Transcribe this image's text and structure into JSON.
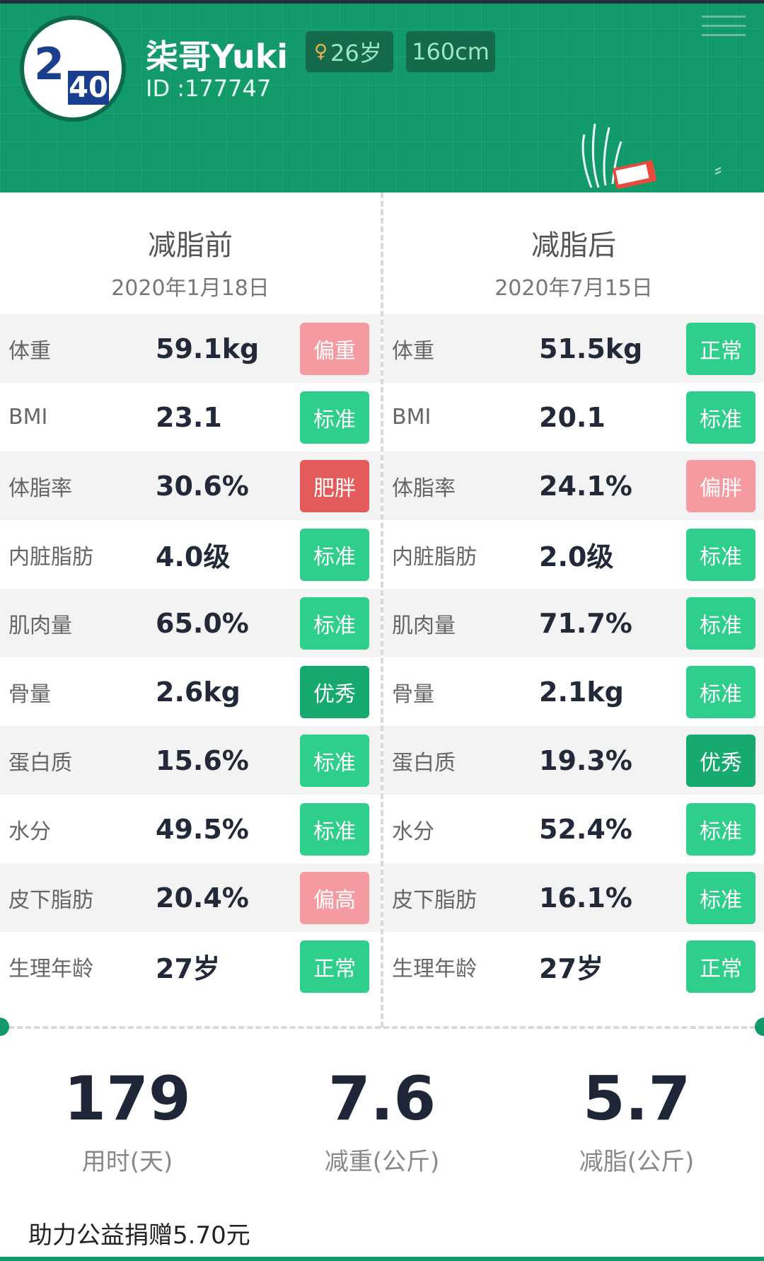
{
  "colors": {
    "header_bg": "#139a6a",
    "badge_standard": "#2ecf8a",
    "badge_excellent": "#16aa6e",
    "badge_overweight": "#f59aa0",
    "badge_obese": "#e35b5b"
  },
  "header": {
    "avatar_icon": "brand-logo-icon",
    "avatar_logo_text_a": "2",
    "avatar_logo_text_b": "40",
    "username": "柒哥Yuki",
    "id_label": "ID :177747",
    "age_icon": "female-icon",
    "age": "26岁",
    "height": "160cm"
  },
  "before": {
    "title": "减脂前",
    "date": "2020年1月18日",
    "rows": [
      {
        "label": "体重",
        "value": "59.1kg",
        "status": "偏重",
        "color": "#f59aa0"
      },
      {
        "label": "BMI",
        "value": "23.1",
        "status": "标准",
        "color": "#2ecf8a"
      },
      {
        "label": "体脂率",
        "value": "30.6%",
        "status": "肥胖",
        "color": "#e35b5b"
      },
      {
        "label": "内脏脂肪",
        "value": "4.0级",
        "status": "标准",
        "color": "#2ecf8a"
      },
      {
        "label": "肌肉量",
        "value": "65.0%",
        "status": "标准",
        "color": "#2ecf8a"
      },
      {
        "label": "骨量",
        "value": "2.6kg",
        "status": "优秀",
        "color": "#16aa6e"
      },
      {
        "label": "蛋白质",
        "value": "15.6%",
        "status": "标准",
        "color": "#2ecf8a"
      },
      {
        "label": "水分",
        "value": "49.5%",
        "status": "标准",
        "color": "#2ecf8a"
      },
      {
        "label": "皮下脂肪",
        "value": "20.4%",
        "status": "偏高",
        "color": "#f59aa0"
      },
      {
        "label": "生理年龄",
        "value": "27岁",
        "status": "正常",
        "color": "#2ecf8a"
      }
    ]
  },
  "after": {
    "title": "减脂后",
    "date": "2020年7月15日",
    "rows": [
      {
        "label": "体重",
        "value": "51.5kg",
        "status": "正常",
        "color": "#2ecf8a"
      },
      {
        "label": "BMI",
        "value": "20.1",
        "status": "标准",
        "color": "#2ecf8a"
      },
      {
        "label": "体脂率",
        "value": "24.1%",
        "status": "偏胖",
        "color": "#f59aa0"
      },
      {
        "label": "内脏脂肪",
        "value": "2.0级",
        "status": "标准",
        "color": "#2ecf8a"
      },
      {
        "label": "肌肉量",
        "value": "71.7%",
        "status": "标准",
        "color": "#2ecf8a"
      },
      {
        "label": "骨量",
        "value": "2.1kg",
        "status": "标准",
        "color": "#2ecf8a"
      },
      {
        "label": "蛋白质",
        "value": "19.3%",
        "status": "优秀",
        "color": "#16aa6e"
      },
      {
        "label": "水分",
        "value": "52.4%",
        "status": "标准",
        "color": "#2ecf8a"
      },
      {
        "label": "皮下脂肪",
        "value": "16.1%",
        "status": "标准",
        "color": "#2ecf8a"
      },
      {
        "label": "生理年龄",
        "value": "27岁",
        "status": "正常",
        "color": "#2ecf8a"
      }
    ]
  },
  "summary": {
    "days": {
      "value": "179",
      "unit": "用时(天)"
    },
    "weight_loss": {
      "value": "7.6",
      "unit": "减重(公斤)"
    },
    "fat_loss": {
      "value": "5.7",
      "unit": "减脂(公斤)"
    }
  },
  "donation": "助力公益捐赠5.70元"
}
